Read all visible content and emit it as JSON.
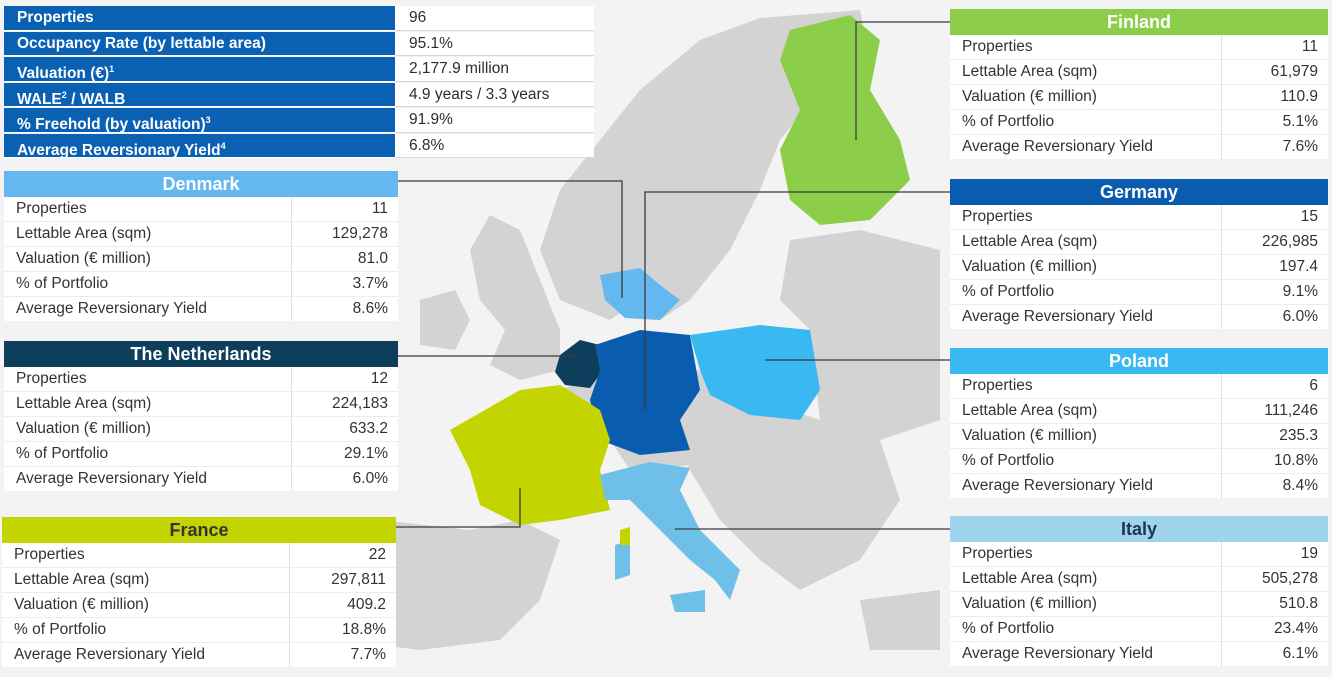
{
  "summary": [
    {
      "label": "Properties",
      "sup": "",
      "value": "96"
    },
    {
      "label": "Occupancy Rate (by lettable area)",
      "sup": "",
      "value": "95.1%"
    },
    {
      "label": "Valuation (€)",
      "sup": "1",
      "value": "2,177.9 million"
    },
    {
      "label": "WALE",
      "sup": "2",
      "label_suffix": " / WALB",
      "value": "4.9 years / 3.3 years"
    },
    {
      "label": "% Freehold (by valuation)",
      "sup": "3",
      "value": "91.9%"
    },
    {
      "label": "Average Reversionary Yield",
      "sup": "4",
      "value": "6.8%"
    }
  ],
  "row_labels": [
    "Properties",
    "Lettable Area (sqm)",
    "Valuation (€ million)",
    "% of Portfolio",
    "Average Reversionary Yield"
  ],
  "countries": {
    "denmark": {
      "name": "Denmark",
      "color": "#64b8ef",
      "values": [
        "11",
        "129,278",
        "81.0",
        "3.7%",
        "8.6%"
      ]
    },
    "netherlands": {
      "name": "The Netherlands",
      "color": "#0d3e5c",
      "values": [
        "12",
        "224,183",
        "633.2",
        "29.1%",
        "6.0%"
      ]
    },
    "france": {
      "name": "France",
      "color": "#c4d400",
      "values": [
        "22",
        "297,811",
        "409.2",
        "18.8%",
        "7.7%"
      ]
    },
    "finland": {
      "name": "Finland",
      "color": "#8cce4a",
      "values": [
        "11",
        "61,979",
        "110.9",
        "5.1%",
        "7.6%"
      ]
    },
    "germany": {
      "name": "Germany",
      "color": "#0a5cae",
      "values": [
        "15",
        "226,985",
        "197.4",
        "9.1%",
        "6.0%"
      ]
    },
    "poland": {
      "name": "Poland",
      "color": "#3ab8f2",
      "values": [
        "6",
        "111,246",
        "235.3",
        "10.8%",
        "8.4%"
      ]
    },
    "italy": {
      "name": "Italy",
      "color": "#9fd4ee",
      "values": [
        "19",
        "505,278",
        "510.8",
        "23.4%",
        "6.1%"
      ]
    }
  }
}
